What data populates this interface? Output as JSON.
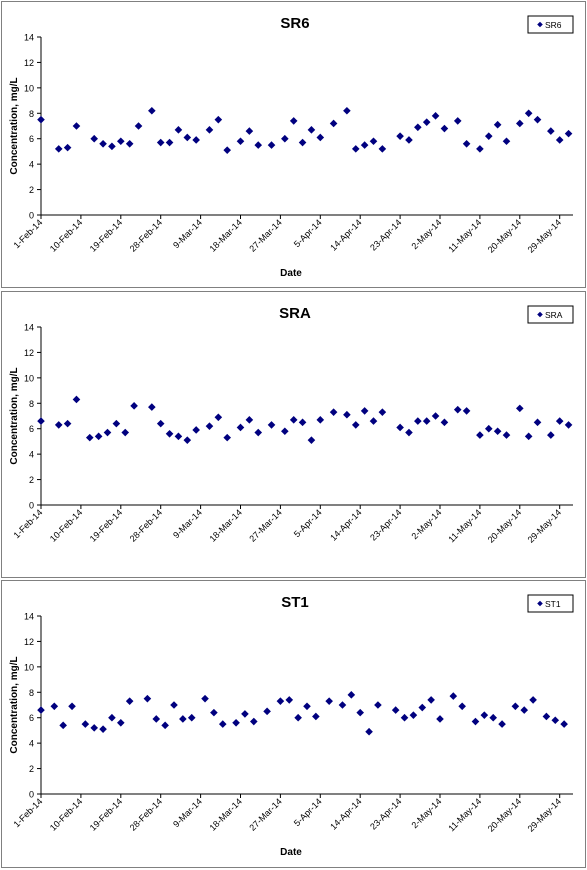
{
  "colors": {
    "marker": "#00007f",
    "axis": "#000000",
    "frame": "#808080",
    "background": "#ffffff"
  },
  "chart_data": [
    {
      "type": "scatter",
      "title": "SR6",
      "xlabel": "Date",
      "ylabel": "Concentration, mg/L",
      "ylim": [
        0,
        14
      ],
      "yticks": [
        "0",
        "2",
        "4",
        "6",
        "8",
        "10",
        "12",
        "14"
      ],
      "xticks": [
        "1-Feb-14",
        "10-Feb-14",
        "19-Feb-14",
        "28-Feb-14",
        "9-Mar-14",
        "18-Mar-14",
        "27-Mar-14",
        "5-Apr-14",
        "14-Apr-14",
        "23-Apr-14",
        "2-May-14",
        "11-May-14",
        "20-May-14",
        "29-May-14"
      ],
      "xlim": [
        "2014-02-01",
        "2014-06-01"
      ],
      "grid": false,
      "legend": "top-right",
      "series": [
        {
          "name": "SR6",
          "marker": "diamond",
          "points": [
            [
              "2014-02-01",
              7.5
            ],
            [
              "2014-02-05",
              5.2
            ],
            [
              "2014-02-07",
              5.3
            ],
            [
              "2014-02-09",
              7.0
            ],
            [
              "2014-02-13",
              6.0
            ],
            [
              "2014-02-15",
              5.6
            ],
            [
              "2014-02-17",
              5.4
            ],
            [
              "2014-02-19",
              5.8
            ],
            [
              "2014-02-21",
              5.6
            ],
            [
              "2014-02-23",
              7.0
            ],
            [
              "2014-02-26",
              8.2
            ],
            [
              "2014-02-28",
              5.7
            ],
            [
              "2014-03-02",
              5.7
            ],
            [
              "2014-03-04",
              6.7
            ],
            [
              "2014-03-06",
              6.1
            ],
            [
              "2014-03-08",
              5.9
            ],
            [
              "2014-03-11",
              6.7
            ],
            [
              "2014-03-13",
              7.5
            ],
            [
              "2014-03-15",
              5.1
            ],
            [
              "2014-03-18",
              5.8
            ],
            [
              "2014-03-20",
              6.6
            ],
            [
              "2014-03-22",
              5.5
            ],
            [
              "2014-03-25",
              5.5
            ],
            [
              "2014-03-28",
              6.0
            ],
            [
              "2014-03-30",
              7.4
            ],
            [
              "2014-04-01",
              5.7
            ],
            [
              "2014-04-03",
              6.7
            ],
            [
              "2014-04-05",
              6.1
            ],
            [
              "2014-04-08",
              7.2
            ],
            [
              "2014-04-11",
              8.2
            ],
            [
              "2014-04-13",
              5.2
            ],
            [
              "2014-04-15",
              5.5
            ],
            [
              "2014-04-17",
              5.8
            ],
            [
              "2014-04-19",
              5.2
            ],
            [
              "2014-04-23",
              6.2
            ],
            [
              "2014-04-25",
              5.9
            ],
            [
              "2014-04-27",
              6.9
            ],
            [
              "2014-04-29",
              7.3
            ],
            [
              "2014-05-01",
              7.8
            ],
            [
              "2014-05-03",
              6.8
            ],
            [
              "2014-05-06",
              7.4
            ],
            [
              "2014-05-08",
              5.6
            ],
            [
              "2014-05-11",
              5.2
            ],
            [
              "2014-05-13",
              6.2
            ],
            [
              "2014-05-15",
              7.1
            ],
            [
              "2014-05-17",
              5.8
            ],
            [
              "2014-05-20",
              7.2
            ],
            [
              "2014-05-22",
              8.0
            ],
            [
              "2014-05-24",
              7.5
            ],
            [
              "2014-05-27",
              6.6
            ],
            [
              "2014-05-29",
              5.9
            ],
            [
              "2014-05-31",
              6.4
            ]
          ]
        }
      ]
    },
    {
      "type": "scatter",
      "title": "SRA",
      "xlabel": "",
      "ylabel": "Concentration, mg/L",
      "ylim": [
        0,
        14
      ],
      "yticks": [
        "0",
        "2",
        "4",
        "6",
        "8",
        "10",
        "12",
        "14"
      ],
      "xticks": [
        "1-Feb-14",
        "10-Feb-14",
        "19-Feb-14",
        "28-Feb-14",
        "9-Mar-14",
        "18-Mar-14",
        "27-Mar-14",
        "5-Apr-14",
        "14-Apr-14",
        "23-Apr-14",
        "2-May-14",
        "11-May-14",
        "20-May-14",
        "29-May-14"
      ],
      "xlim": [
        "2014-02-01",
        "2014-06-01"
      ],
      "grid": false,
      "legend": "top-right",
      "series": [
        {
          "name": "SRA",
          "marker": "diamond",
          "points": [
            [
              "2014-02-01",
              6.6
            ],
            [
              "2014-02-05",
              6.3
            ],
            [
              "2014-02-07",
              6.4
            ],
            [
              "2014-02-09",
              8.3
            ],
            [
              "2014-02-12",
              5.3
            ],
            [
              "2014-02-14",
              5.4
            ],
            [
              "2014-02-16",
              5.7
            ],
            [
              "2014-02-18",
              6.4
            ],
            [
              "2014-02-20",
              5.7
            ],
            [
              "2014-02-22",
              7.8
            ],
            [
              "2014-02-26",
              7.7
            ],
            [
              "2014-02-28",
              6.4
            ],
            [
              "2014-03-02",
              5.6
            ],
            [
              "2014-03-04",
              5.4
            ],
            [
              "2014-03-06",
              5.1
            ],
            [
              "2014-03-08",
              5.9
            ],
            [
              "2014-03-11",
              6.2
            ],
            [
              "2014-03-13",
              6.9
            ],
            [
              "2014-03-15",
              5.3
            ],
            [
              "2014-03-18",
              6.1
            ],
            [
              "2014-03-20",
              6.7
            ],
            [
              "2014-03-22",
              5.7
            ],
            [
              "2014-03-25",
              6.3
            ],
            [
              "2014-03-28",
              5.8
            ],
            [
              "2014-03-30",
              6.7
            ],
            [
              "2014-04-01",
              6.5
            ],
            [
              "2014-04-03",
              5.1
            ],
            [
              "2014-04-05",
              6.7
            ],
            [
              "2014-04-08",
              7.3
            ],
            [
              "2014-04-11",
              7.1
            ],
            [
              "2014-04-13",
              6.3
            ],
            [
              "2014-04-15",
              7.4
            ],
            [
              "2014-04-17",
              6.6
            ],
            [
              "2014-04-19",
              7.3
            ],
            [
              "2014-04-23",
              6.1
            ],
            [
              "2014-04-25",
              5.7
            ],
            [
              "2014-04-27",
              6.6
            ],
            [
              "2014-04-29",
              6.6
            ],
            [
              "2014-05-01",
              7.0
            ],
            [
              "2014-05-03",
              6.5
            ],
            [
              "2014-05-06",
              7.5
            ],
            [
              "2014-05-08",
              7.4
            ],
            [
              "2014-05-11",
              5.5
            ],
            [
              "2014-05-13",
              6.0
            ],
            [
              "2014-05-15",
              5.8
            ],
            [
              "2014-05-17",
              5.5
            ],
            [
              "2014-05-20",
              7.6
            ],
            [
              "2014-05-22",
              5.4
            ],
            [
              "2014-05-24",
              6.5
            ],
            [
              "2014-05-27",
              5.5
            ],
            [
              "2014-05-29",
              6.6
            ],
            [
              "2014-05-31",
              6.3
            ]
          ]
        }
      ]
    },
    {
      "type": "scatter",
      "title": "ST1",
      "xlabel": "Date",
      "ylabel": "Concentration, mg/L",
      "ylim": [
        0,
        14
      ],
      "yticks": [
        "0",
        "2",
        "4",
        "6",
        "8",
        "10",
        "12",
        "14"
      ],
      "xticks": [
        "1-Feb-14",
        "10-Feb-14",
        "19-Feb-14",
        "28-Feb-14",
        "9-Mar-14",
        "18-Mar-14",
        "27-Mar-14",
        "5-Apr-14",
        "14-Apr-14",
        "23-Apr-14",
        "2-May-14",
        "11-May-14",
        "20-May-14",
        "29-May-14"
      ],
      "xlim": [
        "2014-02-01",
        "2014-06-01"
      ],
      "grid": false,
      "legend": "top-right",
      "series": [
        {
          "name": "ST1",
          "marker": "diamond",
          "points": [
            [
              "2014-02-01",
              6.6
            ],
            [
              "2014-02-04",
              6.9
            ],
            [
              "2014-02-06",
              5.4
            ],
            [
              "2014-02-08",
              6.9
            ],
            [
              "2014-02-11",
              5.5
            ],
            [
              "2014-02-13",
              5.2
            ],
            [
              "2014-02-15",
              5.1
            ],
            [
              "2014-02-17",
              6.0
            ],
            [
              "2014-02-19",
              5.6
            ],
            [
              "2014-02-21",
              7.3
            ],
            [
              "2014-02-25",
              7.5
            ],
            [
              "2014-02-27",
              5.9
            ],
            [
              "2014-03-01",
              5.4
            ],
            [
              "2014-03-03",
              7.0
            ],
            [
              "2014-03-05",
              5.9
            ],
            [
              "2014-03-07",
              6.0
            ],
            [
              "2014-03-10",
              7.5
            ],
            [
              "2014-03-12",
              6.4
            ],
            [
              "2014-03-14",
              5.5
            ],
            [
              "2014-03-17",
              5.6
            ],
            [
              "2014-03-19",
              6.3
            ],
            [
              "2014-03-21",
              5.7
            ],
            [
              "2014-03-24",
              6.5
            ],
            [
              "2014-03-27",
              7.3
            ],
            [
              "2014-03-29",
              7.4
            ],
            [
              "2014-03-31",
              6.0
            ],
            [
              "2014-04-02",
              6.9
            ],
            [
              "2014-04-04",
              6.1
            ],
            [
              "2014-04-07",
              7.3
            ],
            [
              "2014-04-10",
              7.0
            ],
            [
              "2014-04-12",
              7.8
            ],
            [
              "2014-04-14",
              6.4
            ],
            [
              "2014-04-16",
              4.9
            ],
            [
              "2014-04-18",
              7.0
            ],
            [
              "2014-04-22",
              6.6
            ],
            [
              "2014-04-24",
              6.0
            ],
            [
              "2014-04-26",
              6.2
            ],
            [
              "2014-04-28",
              6.8
            ],
            [
              "2014-04-30",
              7.4
            ],
            [
              "2014-05-02",
              5.9
            ],
            [
              "2014-05-05",
              7.7
            ],
            [
              "2014-05-07",
              6.9
            ],
            [
              "2014-05-10",
              5.7
            ],
            [
              "2014-05-12",
              6.2
            ],
            [
              "2014-05-14",
              6.0
            ],
            [
              "2014-05-16",
              5.5
            ],
            [
              "2014-05-19",
              6.9
            ],
            [
              "2014-05-21",
              6.6
            ],
            [
              "2014-05-23",
              7.4
            ],
            [
              "2014-05-26",
              6.1
            ],
            [
              "2014-05-28",
              5.8
            ],
            [
              "2014-05-30",
              5.5
            ]
          ]
        }
      ]
    }
  ]
}
